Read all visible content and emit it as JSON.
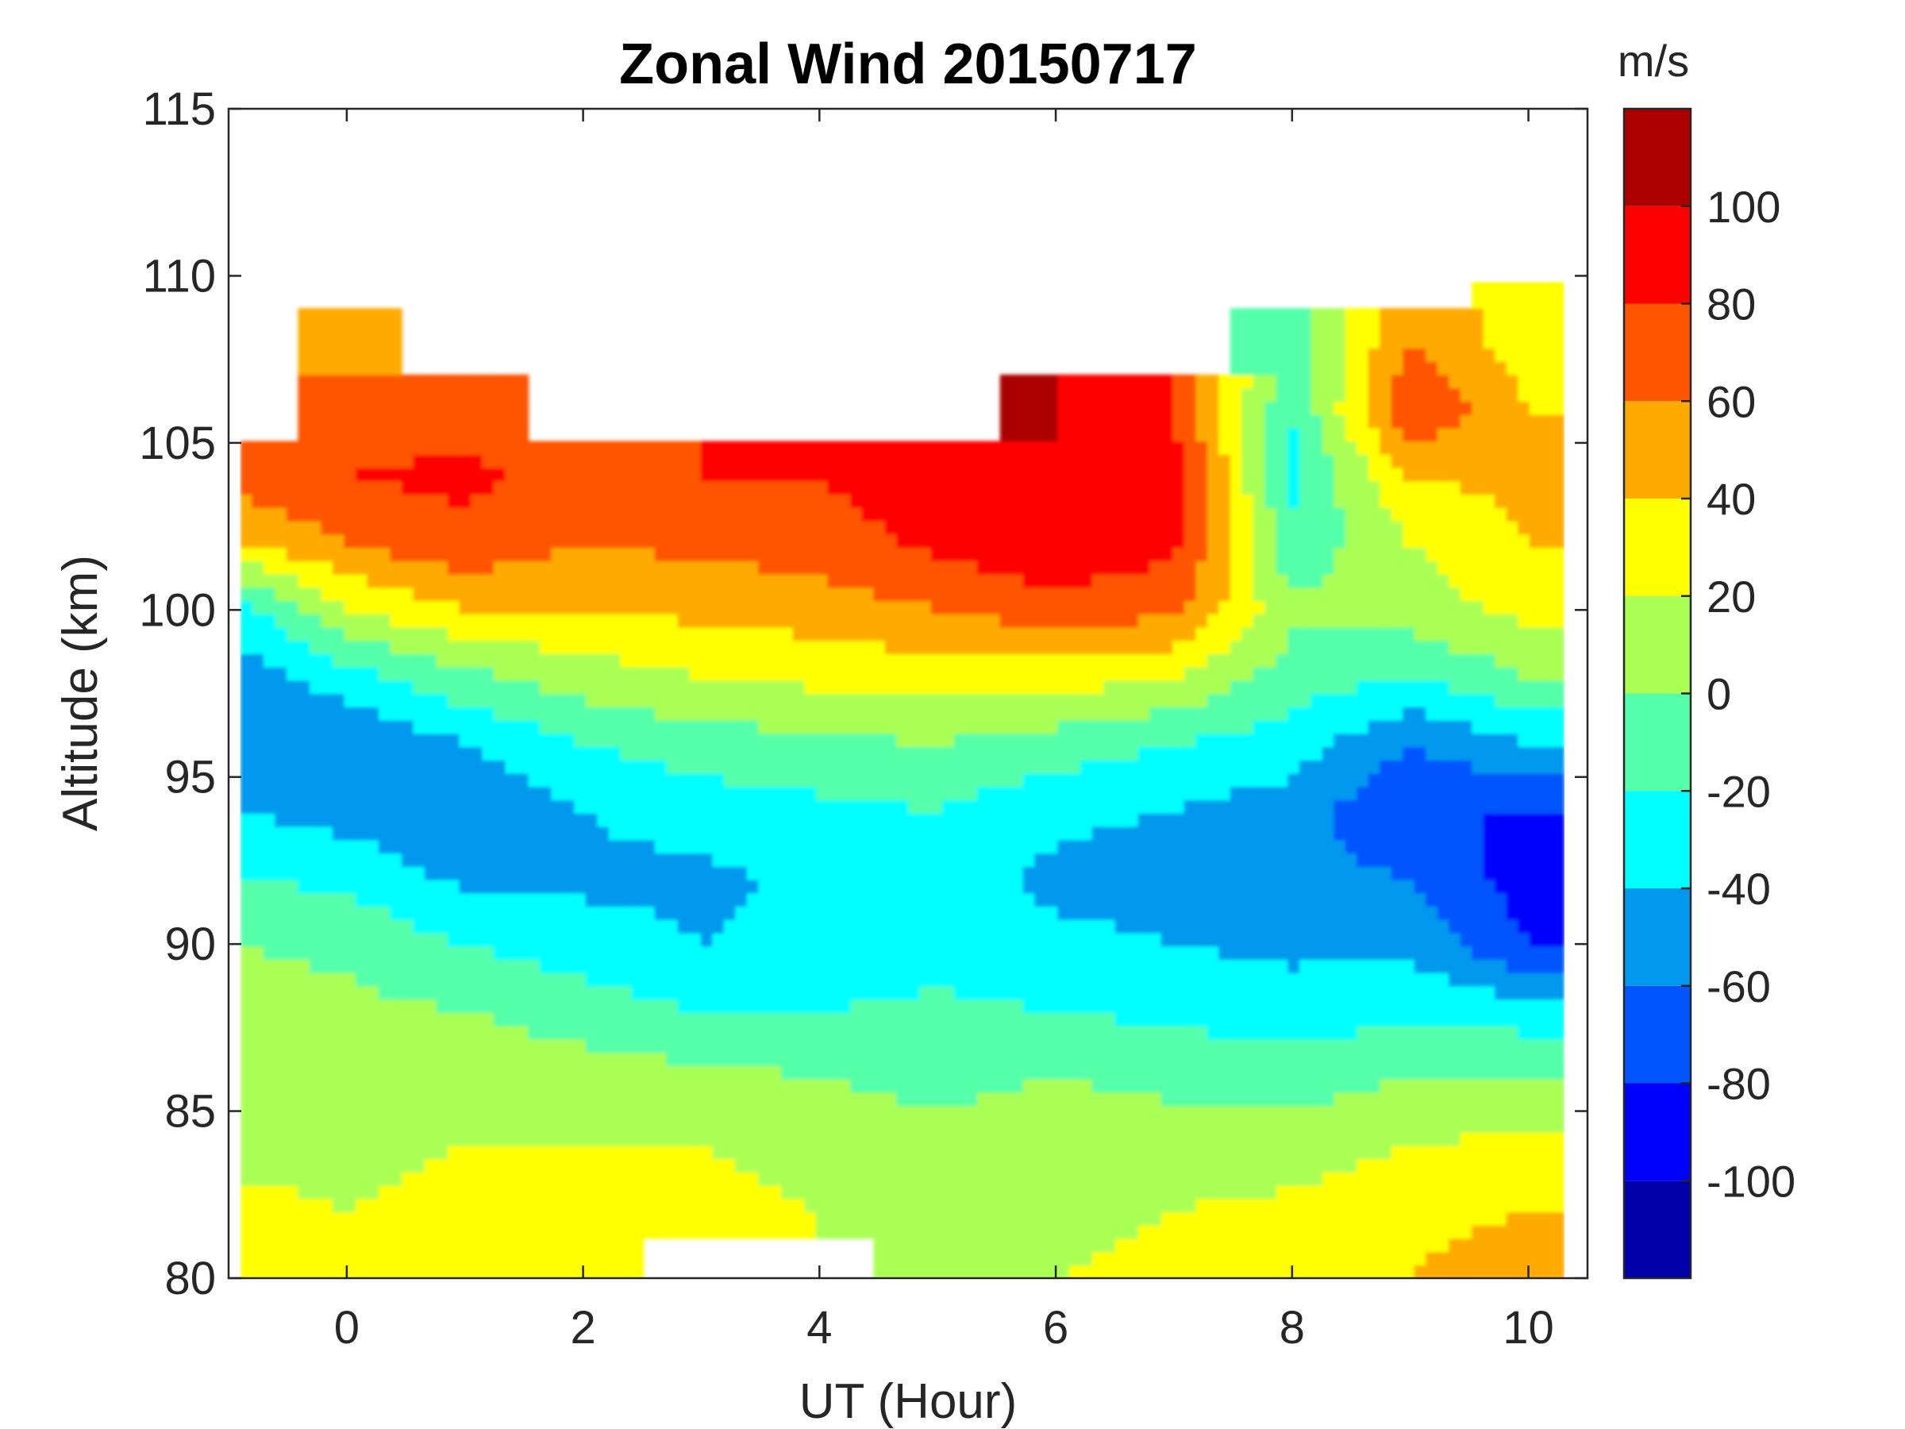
{
  "chart_data": {
    "type": "heatmap",
    "subtype": "filled-contour",
    "title": "Zonal Wind 20150717",
    "xlabel": "UT (Hour)",
    "ylabel": "Altitude (km)",
    "xlim": [
      -1,
      10.5
    ],
    "ylim": [
      80,
      115
    ],
    "xticks": [
      0,
      2,
      4,
      6,
      8,
      10
    ],
    "yticks": [
      80,
      85,
      90,
      95,
      100,
      105,
      110,
      115
    ],
    "data_x_range": [
      -0.9,
      10.3
    ],
    "colorbar": {
      "label": "m/s",
      "range": [
        -120,
        120
      ],
      "levels": [
        -120,
        -100,
        -80,
        -60,
        -40,
        -20,
        0,
        20,
        40,
        60,
        80,
        100,
        120
      ],
      "ticks": [
        -100,
        -80,
        -60,
        -40,
        -20,
        0,
        20,
        40,
        60,
        80,
        100
      ],
      "colors": [
        "#0000aa",
        "#0000ff",
        "#0055ff",
        "#0099ee",
        "#00ffff",
        "#55ffaa",
        "#aaff55",
        "#ffff00",
        "#ffaa00",
        "#ff5500",
        "#ff0000",
        "#aa0000"
      ]
    },
    "profile_altitudes": [
      80,
      82,
      84,
      86,
      88,
      90,
      92,
      94,
      96,
      98,
      100,
      102,
      104,
      106,
      108,
      110
    ],
    "profiles": [
      {
        "ut": -0.9,
        "u": [
          20,
          25,
          15,
          20,
          10,
          0,
          -20,
          -40,
          -60,
          -50,
          -30,
          40,
          70,
          null,
          null,
          null
        ]
      },
      {
        "ut": 0,
        "u": [
          25,
          20,
          15,
          15,
          5,
          -5,
          -25,
          -50,
          -60,
          -30,
          20,
          60,
          80,
          70,
          50,
          null
        ]
      },
      {
        "ut": 1,
        "u": [
          30,
          25,
          20,
          15,
          0,
          -20,
          -45,
          -60,
          -40,
          -5,
          40,
          75,
          85,
          70,
          null,
          null
        ]
      },
      {
        "ut": 2,
        "u": [
          35,
          30,
          20,
          10,
          -10,
          -30,
          -45,
          -40,
          -20,
          10,
          40,
          60,
          70,
          null,
          null,
          null
        ]
      },
      {
        "ut": 3,
        "u": [
          null,
          30,
          20,
          5,
          -20,
          -40,
          -45,
          -30,
          -10,
          20,
          45,
          65,
          80,
          null,
          null,
          null
        ]
      },
      {
        "ut": 4,
        "u": [
          null,
          20,
          10,
          0,
          -20,
          -35,
          -35,
          -25,
          -5,
          25,
          50,
          70,
          80,
          null,
          null,
          null
        ]
      },
      {
        "ut": 5,
        "u": [
          15,
          10,
          5,
          -5,
          -15,
          -30,
          -30,
          -20,
          0,
          30,
          60,
          85,
          95,
          null,
          null,
          null
        ]
      },
      {
        "ut": 6,
        "u": [
          20,
          15,
          10,
          0,
          -20,
          -35,
          -45,
          -35,
          -10,
          30,
          70,
          100,
          100,
          100,
          null,
          null
        ]
      },
      {
        "ut": 7,
        "u": [
          25,
          20,
          10,
          -5,
          -25,
          -40,
          -50,
          -40,
          -20,
          20,
          65,
          85,
          90,
          80,
          null,
          null
        ]
      },
      {
        "ut": 8,
        "u": [
          30,
          25,
          10,
          -10,
          -30,
          -45,
          -55,
          -50,
          -30,
          -10,
          5,
          -15,
          -25,
          -20,
          -10,
          null
        ]
      },
      {
        "ut": 9,
        "u": [
          40,
          35,
          20,
          0,
          -25,
          -45,
          -60,
          -80,
          -60,
          -20,
          10,
          20,
          40,
          80,
          60,
          null
        ]
      },
      {
        "ut": 10,
        "u": [
          50,
          40,
          25,
          0,
          -30,
          -80,
          -90,
          -80,
          -40,
          0,
          25,
          40,
          45,
          40,
          30,
          20
        ]
      }
    ]
  }
}
